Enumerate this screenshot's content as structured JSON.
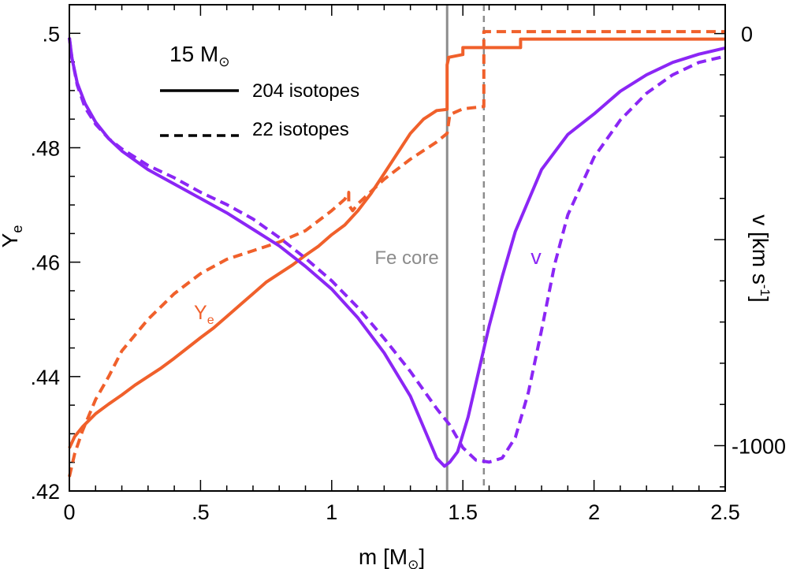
{
  "chart_data": {
    "type": "line",
    "xlabel": {
      "prefix": "m [M",
      "symbol": "⊙",
      "suffix": "]"
    },
    "ylabel_left": {
      "main": "Y",
      "sub": "e"
    },
    "ylabel_right": {
      "main": "v [km s",
      "sup": "-1",
      "end": "]"
    },
    "xlim": [
      0,
      2.5
    ],
    "ylim_left": [
      0.42,
      0.505
    ],
    "ylim_right": [
      -1110,
      70
    ],
    "x_ticks": [
      {
        "value": 0,
        "label": "0"
      },
      {
        "value": 0.5,
        "label": ".5"
      },
      {
        "value": 1,
        "label": "1"
      },
      {
        "value": 1.5,
        "label": "1.5"
      },
      {
        "value": 2,
        "label": "2"
      },
      {
        "value": 2.5,
        "label": "2.5"
      }
    ],
    "y_left_ticks": [
      {
        "value": 0.42,
        "label": ".42"
      },
      {
        "value": 0.44,
        "label": ".44"
      },
      {
        "value": 0.46,
        "label": ".46"
      },
      {
        "value": 0.48,
        "label": ".48"
      },
      {
        "value": 0.5,
        "label": ".5"
      }
    ],
    "y_right_ticks": [
      {
        "value": 0,
        "label": "0"
      },
      {
        "value": -1000,
        "label": "-1000"
      }
    ],
    "legend": {
      "title": {
        "main": "15 M",
        "symbol": "⊙"
      },
      "entries": [
        {
          "label": "204 isotopes",
          "style": "solid"
        },
        {
          "label": "22 isotopes",
          "style": "dashed"
        }
      ]
    },
    "annotations": {
      "fe_core": {
        "text": "Fe core",
        "x_204": 1.44,
        "x_22": 1.58,
        "color": "#8c8c8c"
      },
      "ye_label": {
        "main": "Y",
        "sub": "e",
        "color": "#f0602b"
      },
      "v_label": {
        "text": "v",
        "color": "#8b26f5"
      }
    },
    "colors": {
      "ye": "#f0602b",
      "v": "#8b26f5",
      "fe": "#8c8c8c"
    },
    "series": [
      {
        "quantity": "Ye",
        "axis": "left",
        "style": "solid",
        "x": [
          0,
          0.02,
          0.05,
          0.1,
          0.15,
          0.2,
          0.25,
          0.3,
          0.35,
          0.4,
          0.45,
          0.5,
          0.55,
          0.6,
          0.65,
          0.7,
          0.75,
          0.8,
          0.85,
          0.9,
          0.95,
          1.0,
          1.05,
          1.1,
          1.15,
          1.2,
          1.25,
          1.3,
          1.35,
          1.4,
          1.44,
          1.44,
          1.445,
          1.445,
          1.5,
          1.5,
          1.55,
          1.6,
          1.7,
          1.72,
          1.72,
          2.0,
          2.5
        ],
        "y": [
          0.4275,
          0.4295,
          0.4312,
          0.4335,
          0.4352,
          0.4368,
          0.4385,
          0.44,
          0.4415,
          0.4432,
          0.445,
          0.4468,
          0.4485,
          0.4505,
          0.4525,
          0.4545,
          0.4565,
          0.458,
          0.4595,
          0.4612,
          0.4628,
          0.4648,
          0.4665,
          0.469,
          0.472,
          0.4755,
          0.479,
          0.4825,
          0.485,
          0.4865,
          0.4867,
          0.4945,
          0.4955,
          0.4958,
          0.4963,
          0.4975,
          0.4975,
          0.4975,
          0.4975,
          0.4975,
          0.499,
          0.499,
          0.499
        ]
      },
      {
        "quantity": "Ye",
        "axis": "left",
        "style": "dashed",
        "x": [
          0,
          0.02,
          0.05,
          0.1,
          0.15,
          0.2,
          0.3,
          0.4,
          0.5,
          0.6,
          0.7,
          0.8,
          0.9,
          1.0,
          1.05,
          1.065,
          1.065,
          1.08,
          1.1,
          1.2,
          1.3,
          1.4,
          1.44,
          1.45,
          1.5,
          1.58,
          1.58,
          2.0,
          2.5
        ],
        "y": [
          0.4225,
          0.4265,
          0.4305,
          0.436,
          0.44,
          0.4445,
          0.45,
          0.4545,
          0.458,
          0.4605,
          0.462,
          0.4635,
          0.4655,
          0.469,
          0.471,
          0.4722,
          0.47,
          0.469,
          0.4702,
          0.4745,
          0.478,
          0.481,
          0.4825,
          0.4858,
          0.4868,
          0.4872,
          0.5003,
          0.5003,
          0.5003
        ]
      },
      {
        "quantity": "v",
        "axis": "right",
        "style": "solid",
        "x": [
          0,
          0.01,
          0.03,
          0.06,
          0.1,
          0.15,
          0.2,
          0.3,
          0.4,
          0.5,
          0.6,
          0.7,
          0.8,
          0.9,
          1.0,
          1.1,
          1.2,
          1.3,
          1.35,
          1.4,
          1.43,
          1.45,
          1.48,
          1.52,
          1.56,
          1.6,
          1.65,
          1.7,
          1.8,
          1.9,
          2.0,
          2.1,
          2.2,
          2.3,
          2.4,
          2.5
        ],
        "v": [
          -10,
          -60,
          -120,
          -170,
          -215,
          -255,
          -285,
          -330,
          -365,
          -400,
          -435,
          -475,
          -515,
          -565,
          -620,
          -690,
          -775,
          -880,
          -955,
          -1030,
          -1050,
          -1040,
          -1015,
          -930,
          -820,
          -710,
          -590,
          -480,
          -330,
          -245,
          -195,
          -140,
          -100,
          -70,
          -50,
          -35
        ]
      },
      {
        "quantity": "v",
        "axis": "right",
        "style": "dashed",
        "x": [
          0,
          0.01,
          0.03,
          0.06,
          0.1,
          0.15,
          0.2,
          0.3,
          0.4,
          0.5,
          0.6,
          0.7,
          0.8,
          0.9,
          1.0,
          1.1,
          1.2,
          1.3,
          1.4,
          1.45,
          1.5,
          1.55,
          1.6,
          1.65,
          1.7,
          1.75,
          1.8,
          1.85,
          1.9,
          2.0,
          2.1,
          2.2,
          2.3,
          2.4,
          2.5
        ],
        "v": [
          -10,
          -60,
          -125,
          -180,
          -220,
          -255,
          -280,
          -320,
          -350,
          -385,
          -415,
          -450,
          -495,
          -545,
          -600,
          -665,
          -740,
          -820,
          -910,
          -950,
          -1005,
          -1035,
          -1040,
          -1030,
          -980,
          -870,
          -720,
          -560,
          -440,
          -300,
          -210,
          -145,
          -100,
          -70,
          -55
        ]
      }
    ]
  }
}
